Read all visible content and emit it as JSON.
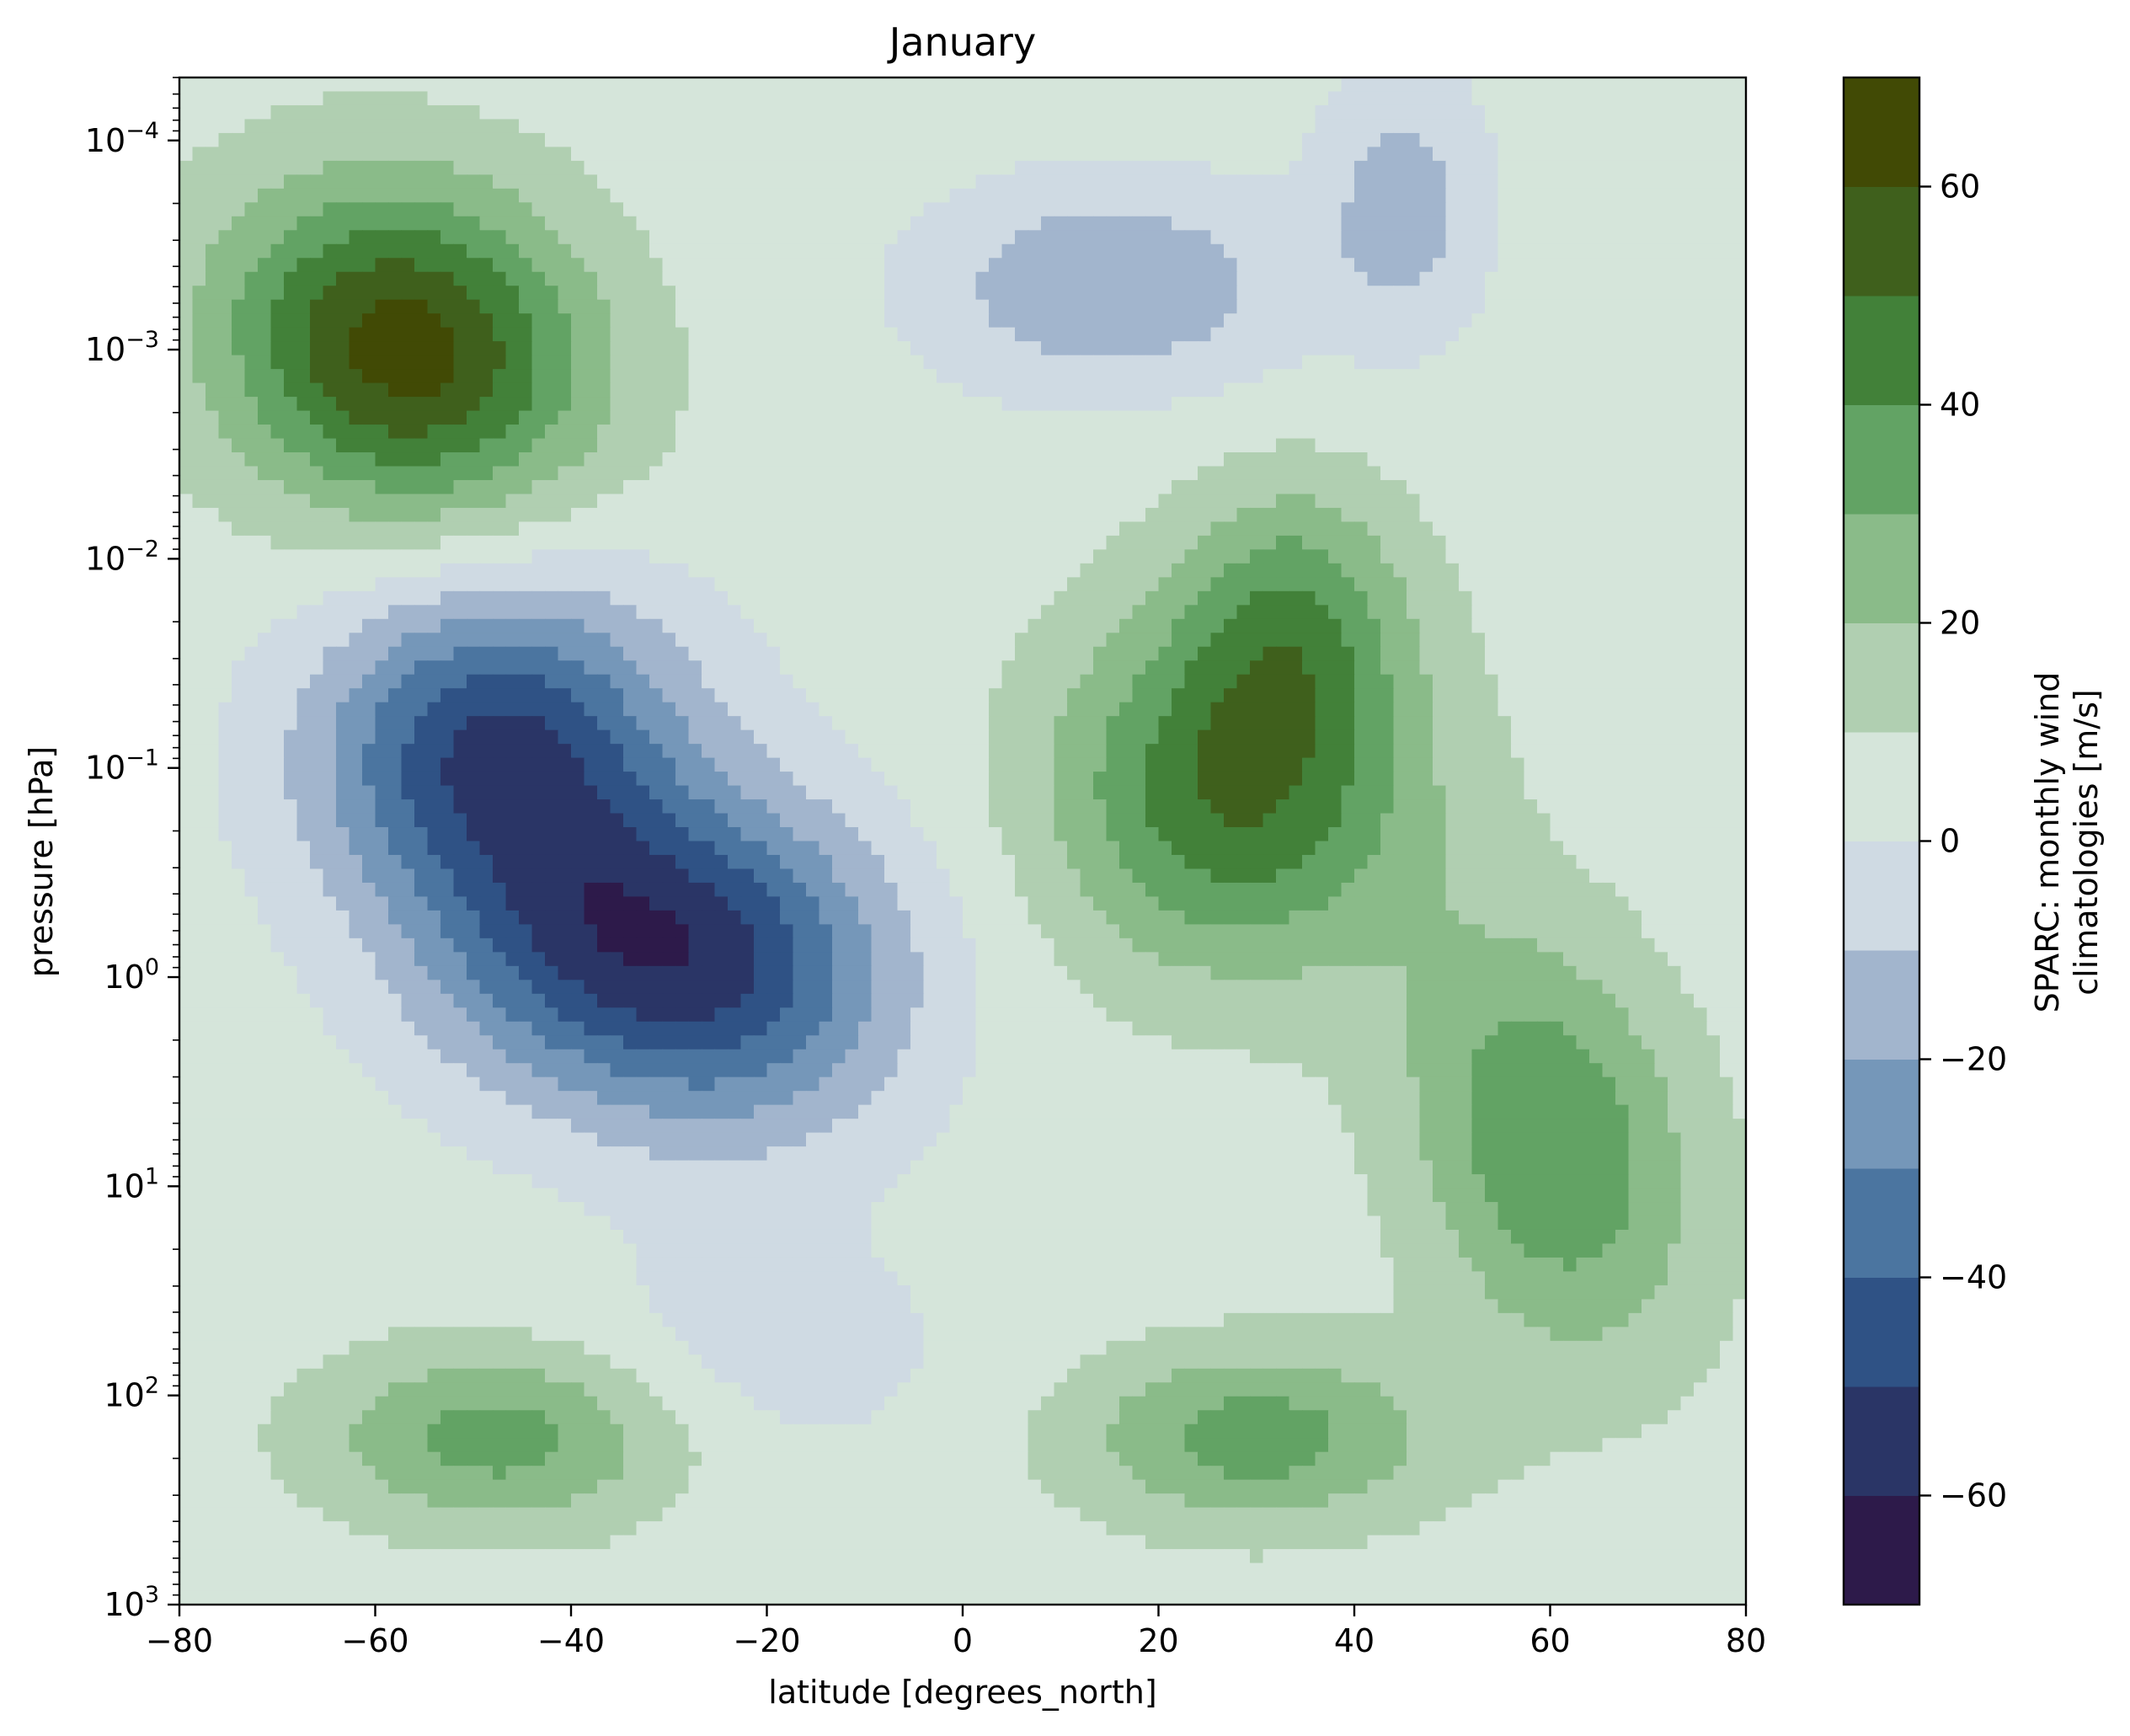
{
  "chart_data": {
    "type": "contourf",
    "title": "January",
    "xlabel": "latitude [degrees_north]",
    "ylabel": "pressure [hPa]",
    "colorbar_label_line1": "SPARC: monthly wind",
    "colorbar_label_line2": "climatologies [m/s]",
    "xlim": [
      -80,
      80
    ],
    "ylim": [
      1000,
      5e-05
    ],
    "yscale": "log",
    "y_inverted": true,
    "grid": false,
    "x_ticks": [
      {
        "value": -80,
        "label": "−80"
      },
      {
        "value": -60,
        "label": "−60"
      },
      {
        "value": -40,
        "label": "−40"
      },
      {
        "value": -20,
        "label": "−20"
      },
      {
        "value": 0,
        "label": "0"
      },
      {
        "value": 20,
        "label": "20"
      },
      {
        "value": 40,
        "label": "40"
      },
      {
        "value": 60,
        "label": "60"
      },
      {
        "value": 80,
        "label": "80"
      }
    ],
    "y_ticks": [
      {
        "exp": -4,
        "label_base": "10",
        "label_exp": "−4"
      },
      {
        "exp": -3,
        "label_base": "10",
        "label_exp": "−3"
      },
      {
        "exp": -2,
        "label_base": "10",
        "label_exp": "−2"
      },
      {
        "exp": -1,
        "label_base": "10",
        "label_exp": "−1"
      },
      {
        "exp": 0,
        "label_base": "10",
        "label_exp": "0"
      },
      {
        "exp": 1,
        "label_base": "10",
        "label_exp": "1"
      },
      {
        "exp": 2,
        "label_base": "10",
        "label_exp": "2"
      },
      {
        "exp": 3,
        "label_base": "10",
        "label_exp": "3"
      }
    ],
    "colorbar": {
      "levels": [
        -70,
        -60,
        -50,
        -40,
        -30,
        -20,
        -10,
        0,
        10,
        20,
        30,
        40,
        50,
        60,
        70
      ],
      "colors": [
        "#2d1a4a",
        "#2a3566",
        "#2f5285",
        "#4b75a0",
        "#7597b9",
        "#a2b5cd",
        "#cfdae3",
        "#d5e5da",
        "#b0cfb1",
        "#8abb89",
        "#62a364",
        "#428139",
        "#3f601c",
        "#414a05"
      ],
      "ticks": [
        {
          "value": -60,
          "label": "−60"
        },
        {
          "value": -40,
          "label": "−40"
        },
        {
          "value": -20,
          "label": "−20"
        },
        {
          "value": 0,
          "label": "0"
        },
        {
          "value": 20,
          "label": "20"
        },
        {
          "value": 40,
          "label": "40"
        },
        {
          "value": 60,
          "label": "60"
        }
      ]
    },
    "features": [
      {
        "lat": -57,
        "log10p": -3.0,
        "dlat": 13,
        "dlogp": 0.55,
        "amp": 60,
        "angle": -0.25
      },
      {
        "lat": -48,
        "log10p": -1.1,
        "dlat": 13,
        "dlogp": 0.55,
        "amp": -55,
        "angle": 0.15
      },
      {
        "lat": -24,
        "log10p": 0.0,
        "dlat": 13,
        "dlogp": 0.55,
        "amp": -48,
        "angle": 0.0
      },
      {
        "lat": -40,
        "log10p": -0.2,
        "dlat": 12,
        "dlogp": 0.5,
        "amp": -30,
        "angle": 0.4
      },
      {
        "lat": 28,
        "log10p": -0.9,
        "dlat": 13,
        "dlogp": 0.6,
        "amp": 45,
        "angle": 0.0
      },
      {
        "lat": 34,
        "log10p": -1.75,
        "dlat": 8,
        "dlogp": 0.45,
        "amp": 25,
        "angle": 0.0
      },
      {
        "lat": 60,
        "log10p": 0.8,
        "dlat": 10,
        "dlogp": 0.7,
        "amp": 35,
        "angle": -0.35
      },
      {
        "lat": 15,
        "log10p": -3.3,
        "dlat": 13,
        "dlogp": 0.35,
        "amp": -25,
        "angle": 0.0
      },
      {
        "lat": 45,
        "log10p": -3.7,
        "dlat": 6,
        "dlogp": 0.45,
        "amp": -20,
        "angle": 0.0
      },
      {
        "lat": -47,
        "log10p": 2.2,
        "dlat": 13,
        "dlogp": 0.3,
        "amp": 30,
        "angle": 0.0
      },
      {
        "lat": 30,
        "log10p": 2.2,
        "dlat": 13,
        "dlogp": 0.3,
        "amp": 30,
        "angle": 0.0
      },
      {
        "lat": -20,
        "log10p": 1.8,
        "dlat": 14,
        "dlogp": 0.4,
        "amp": -10,
        "angle": 0.0
      }
    ]
  }
}
